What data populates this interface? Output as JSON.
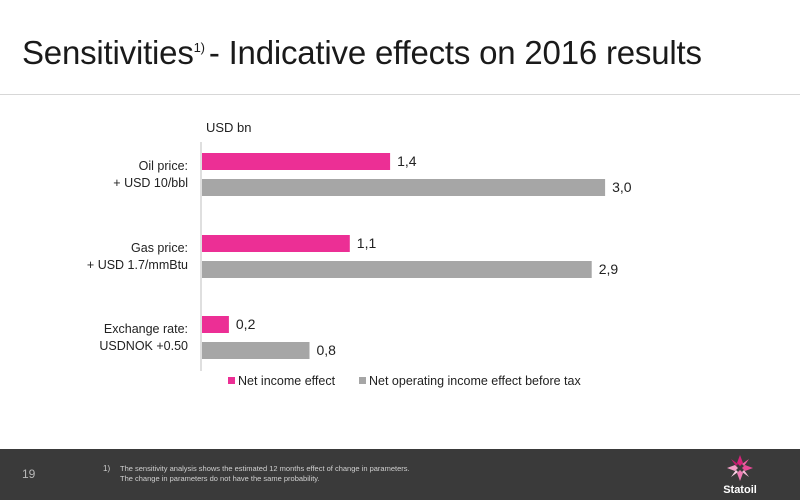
{
  "title": {
    "main": "Sensitivities",
    "sup": "1)",
    "rest": "- Indicative effects on 2016 results"
  },
  "chart_data": {
    "type": "bar",
    "orientation": "horizontal",
    "unit_label": "USD bn",
    "categories": [
      {
        "line1": "Oil price:",
        "line2": "+ USD 10/bbl"
      },
      {
        "line1": "Gas price:",
        "line2": "+ USD 1.7/mmBtu"
      },
      {
        "line1": "Exchange rate:",
        "line2": "USDNOK +0.50"
      }
    ],
    "series": [
      {
        "name": "Net income effect",
        "color": "#ec2f95",
        "values": [
          1.4,
          1.1,
          0.2
        ],
        "labels": [
          "1,4",
          "1,1",
          "0,2"
        ]
      },
      {
        "name": "Net operating income effect before tax",
        "color": "#a6a6a6",
        "values": [
          3.0,
          2.9,
          0.8
        ],
        "labels": [
          "3,0",
          "2,9",
          "0,8"
        ]
      }
    ],
    "xlim": [
      0,
      3.2
    ],
    "grid": false,
    "legend_position": "bottom"
  },
  "footer": {
    "page_number": "19",
    "footnote_marker": "1)",
    "footnote_line1": "The sensitivity analysis shows the estimated 12 months effect of change in parameters.",
    "footnote_line2": "The change in parameters do not have the same probability.",
    "logo_text": "Statoil"
  }
}
